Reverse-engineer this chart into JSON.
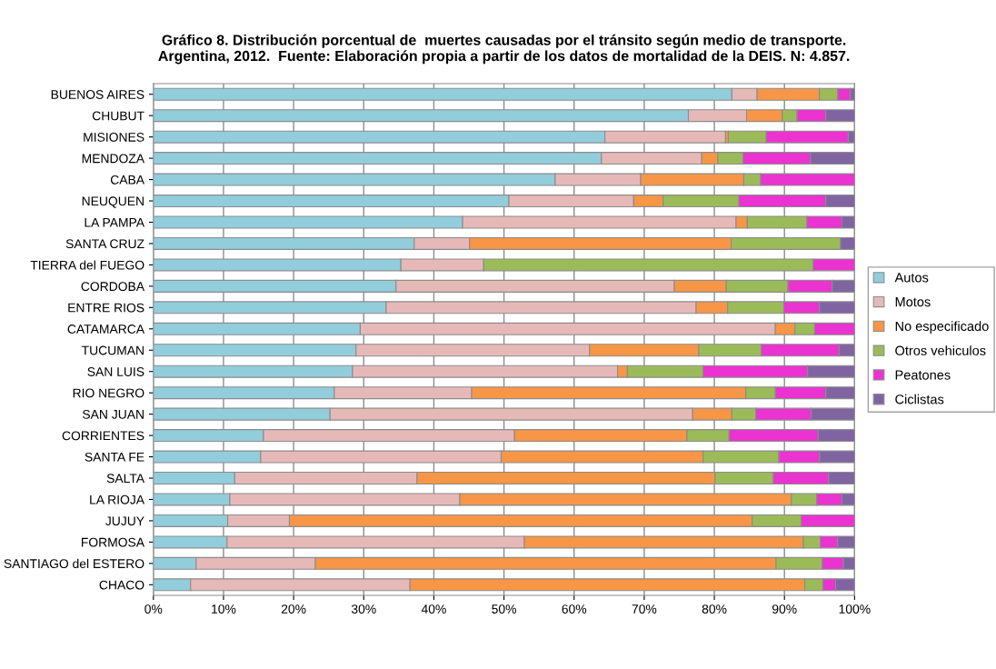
{
  "chart_data": {
    "type": "bar",
    "orientation": "horizontal",
    "stacked": true,
    "title": "Gráfico 8. Distribución porcentual de  muertes causadas por el tránsito según medio de transporte.\nArgentina, 2012.  Fuente: Elaboración propia a partir de los datos de mortalidad de la DEIS. N: 4.857.",
    "categories": [
      "BUENOS AIRES",
      "CHUBUT",
      "MISIONES",
      "MENDOZA",
      "CABA",
      "NEUQUEN",
      "LA PAMPA",
      "SANTA CRUZ",
      "TIERRA del FUEGO",
      "CORDOBA",
      "ENTRE RIOS",
      "CATAMARCA",
      "TUCUMAN",
      "SAN LUIS",
      "RIO NEGRO",
      "SAN JUAN",
      "CORRIENTES",
      "SANTA FE",
      "SALTA",
      "LA RIOJA",
      "JUJUY",
      "FORMOSA",
      "SANTIAGO del ESTERO",
      "CHACO"
    ],
    "series": [
      {
        "name": "Autos",
        "color": "#92cddc",
        "values": [
          82.5,
          76.3,
          64.4,
          63.9,
          57.3,
          50.7,
          44.1,
          37.2,
          35.3,
          34.6,
          33.2,
          29.5,
          28.9,
          28.4,
          25.8,
          25.2,
          15.7,
          15.3,
          11.6,
          10.9,
          10.6,
          10.5,
          6.1,
          5.3
        ]
      },
      {
        "name": "Motos",
        "color": "#e6b9b8",
        "values": [
          3.6,
          8.3,
          17.2,
          14.3,
          12.2,
          17.8,
          39.0,
          7.9,
          11.8,
          39.7,
          44.2,
          59.2,
          33.3,
          37.8,
          19.6,
          51.7,
          35.8,
          34.3,
          26.0,
          32.8,
          8.8,
          42.4,
          17.0,
          31.3
        ]
      },
      {
        "name": "No especificado",
        "color": "#f79646",
        "values": [
          8.9,
          5.1,
          0.4,
          2.3,
          14.7,
          4.2,
          1.6,
          37.3,
          0,
          7.4,
          4.5,
          2.8,
          15.6,
          1.4,
          39.1,
          5.6,
          24.6,
          28.8,
          42.5,
          47.3,
          66.0,
          39.8,
          65.7,
          56.3
        ]
      },
      {
        "name": "Otros vehiculos",
        "color": "#9bbb59",
        "values": [
          2.6,
          2.1,
          5.4,
          3.6,
          2.4,
          10.8,
          8.5,
          15.6,
          47.0,
          8.8,
          8.0,
          2.8,
          8.9,
          10.8,
          4.2,
          3.4,
          6.0,
          10.8,
          8.3,
          3.6,
          7.0,
          2.4,
          6.6,
          2.6
        ]
      },
      {
        "name": "Peatones",
        "color": "#ea33d0",
        "values": [
          1.8,
          4.1,
          11.7,
          9.6,
          13.4,
          12.4,
          5.0,
          0,
          5.9,
          6.3,
          5.1,
          5.7,
          11.1,
          14.9,
          7.2,
          7.9,
          12.7,
          5.8,
          7.9,
          3.6,
          7.6,
          2.5,
          3.0,
          1.8
        ]
      },
      {
        "name": "Ciclistas",
        "color": "#8064a2",
        "values": [
          0.6,
          4.1,
          0.9,
          6.3,
          0,
          4.1,
          1.8,
          2.0,
          0,
          3.2,
          5.0,
          0,
          2.2,
          6.7,
          4.1,
          6.2,
          5.2,
          5.0,
          3.7,
          1.8,
          0,
          2.4,
          1.6,
          2.7
        ]
      }
    ],
    "xlim": [
      0,
      100
    ],
    "xticks": [
      {
        "value": 0,
        "label": "0%"
      },
      {
        "value": 10,
        "label": "10%"
      },
      {
        "value": 20,
        "label": "20%"
      },
      {
        "value": 30,
        "label": "30%"
      },
      {
        "value": 40,
        "label": "40%"
      },
      {
        "value": 50,
        "label": "50%"
      },
      {
        "value": 60,
        "label": "60%"
      },
      {
        "value": 70,
        "label": "70%"
      },
      {
        "value": 80,
        "label": "80%"
      },
      {
        "value": 90,
        "label": "90%"
      },
      {
        "value": 100,
        "label": "100%"
      }
    ],
    "grid": "x",
    "legend": "right"
  }
}
